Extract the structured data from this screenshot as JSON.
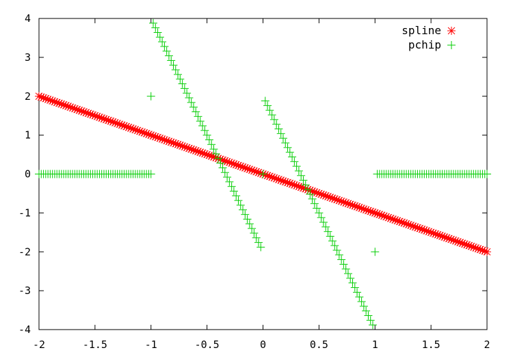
{
  "chart_data": {
    "type": "scatter",
    "xlim": [
      -2,
      2
    ],
    "ylim": [
      -4,
      4
    ],
    "x_ticks": [
      -2,
      -1.5,
      -1,
      -0.5,
      0,
      0.5,
      1,
      1.5,
      2
    ],
    "x_tick_labels": [
      "-2",
      "-1.5",
      "-1",
      "-0.5",
      "0",
      "0.5",
      "1",
      "1.5",
      "2"
    ],
    "y_ticks": [
      -4,
      -3,
      -2,
      -1,
      0,
      1,
      2,
      3,
      4
    ],
    "y_tick_labels": [
      "-4",
      "-3",
      "-2",
      "-1",
      "0",
      "1",
      "2",
      "3",
      "4"
    ],
    "grid": false,
    "legend_position": "top-right",
    "series": [
      {
        "name": "spline",
        "marker": "asterisk",
        "color": "#ff0000",
        "segments": [
          {
            "x_start": -2,
            "x_end": 2,
            "step": 0.02,
            "slope": -1,
            "intercept": 0
          }
        ]
      },
      {
        "name": "pchip",
        "marker": "plus",
        "color": "#00cc00",
        "segments": [
          {
            "x_start": -2,
            "x_end": -1,
            "step": 0.02,
            "slope": 0,
            "intercept": 0
          },
          {
            "x_start": -0.98,
            "x_end": -0.02,
            "step": 0.02,
            "slope": -6,
            "intercept": -2
          },
          {
            "x_start": 0.02,
            "x_end": 0.98,
            "step": 0.02,
            "slope": -6,
            "intercept": 2
          },
          {
            "x_start": 1.02,
            "x_end": 2,
            "step": 0.02,
            "slope": 0,
            "intercept": 0
          }
        ],
        "points": [
          {
            "x": -1,
            "y": 2
          },
          {
            "x": 0,
            "y": 0
          },
          {
            "x": 1,
            "y": -2
          }
        ]
      }
    ]
  }
}
